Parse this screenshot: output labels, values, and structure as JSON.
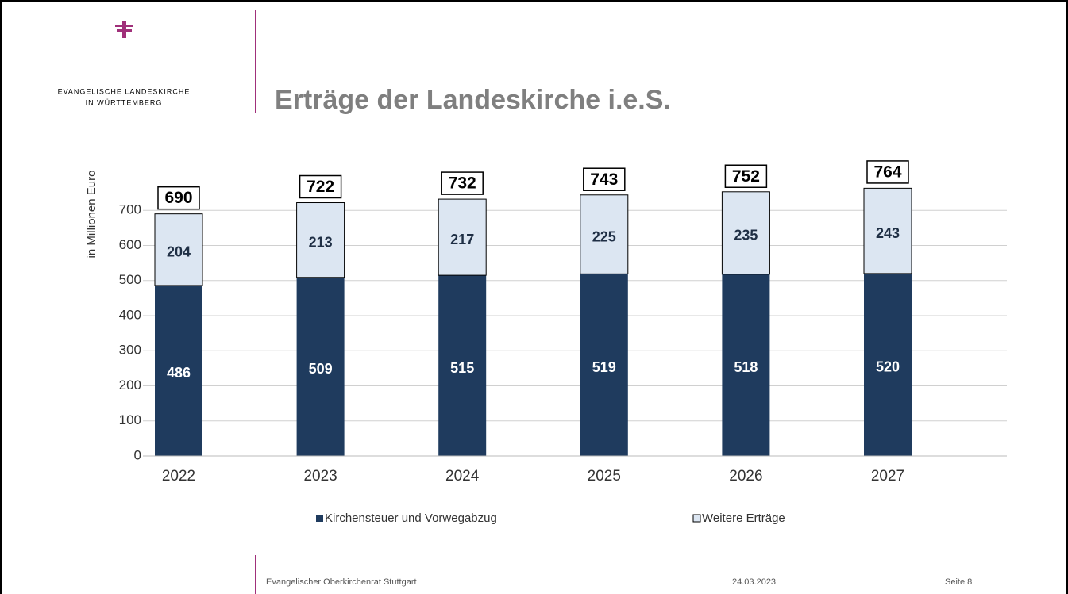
{
  "header": {
    "org_line1": "Evangelische Landeskirche",
    "org_line2": "In Württemberg"
  },
  "chart_data": {
    "type": "stacked_bar",
    "title": "Erträge der Landeskirche i.e.S.",
    "ylabel": "in Millionen Euro",
    "categories": [
      "2022",
      "2023",
      "2024",
      "2025",
      "2026",
      "2027"
    ],
    "series": [
      {
        "name": "Kirchensteuer und Vorwegabzug",
        "color": "#1f3b5e",
        "values": [
          486,
          509,
          515,
          519,
          518,
          520
        ]
      },
      {
        "name": "Weitere Erträge",
        "color": "#dce6f2",
        "values": [
          204,
          213,
          217,
          225,
          235,
          243
        ]
      }
    ],
    "totals": [
      690,
      722,
      732,
      743,
      752,
      764
    ],
    "ylim": [
      0,
      800
    ],
    "yticks": [
      0,
      100,
      200,
      300,
      400,
      500,
      600,
      700
    ],
    "grid": true,
    "legend": "bottom"
  },
  "footer": {
    "left": "Evangelischer Oberkirchenrat Stuttgart",
    "date": "24.03.2023",
    "page": "Seite 8"
  }
}
